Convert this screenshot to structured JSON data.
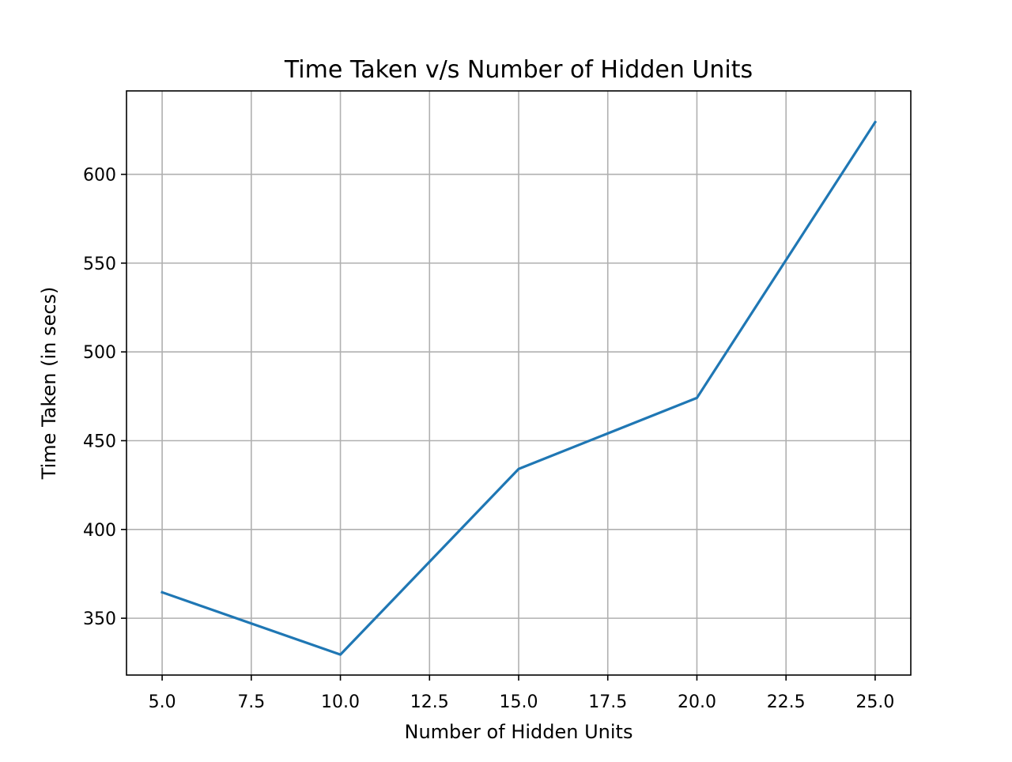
{
  "chart_data": {
    "type": "line",
    "title": "Time Taken v/s Number of Hidden Units",
    "xlabel": "Number of Hidden Units",
    "ylabel": "Time Taken (in secs)",
    "x": [
      5,
      10,
      15,
      20,
      25
    ],
    "series": [
      {
        "values": [
          364.6,
          329.5,
          434.1,
          474.1,
          629.4
        ]
      }
    ],
    "xlim": [
      4.0,
      26.0
    ],
    "ylim": [
      318.0,
      647.0
    ],
    "x_ticks": [
      5.0,
      7.5,
      10.0,
      12.5,
      15.0,
      17.5,
      20.0,
      22.5,
      25.0
    ],
    "x_tick_labels": [
      "5.0",
      "7.5",
      "10.0",
      "12.5",
      "15.0",
      "17.5",
      "20.0",
      "22.5",
      "25.0"
    ],
    "y_ticks": [
      350,
      400,
      450,
      500,
      550,
      600
    ],
    "y_tick_labels": [
      "350",
      "400",
      "450",
      "500",
      "550",
      "600"
    ],
    "grid": true,
    "legend": "none",
    "colors": {
      "line": "#1f77b4",
      "grid": "#b0b0b0",
      "axes": "#000000"
    }
  }
}
